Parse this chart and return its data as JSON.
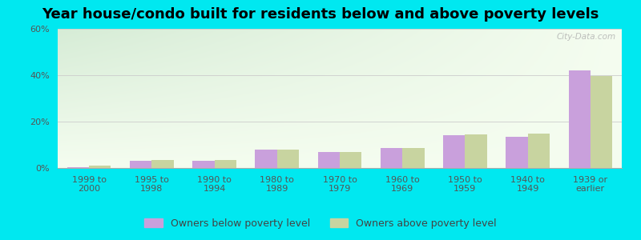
{
  "title": "Year house/condo built for residents below and above poverty levels",
  "categories": [
    "1999 to\n2000",
    "1995 to\n1998",
    "1990 to\n1994",
    "1980 to\n1989",
    "1970 to\n1979",
    "1960 to\n1969",
    "1950 to\n1959",
    "1940 to\n1949",
    "1939 or\nearlier"
  ],
  "below_poverty": [
    0.5,
    3.0,
    3.0,
    8.0,
    7.0,
    8.5,
    14.0,
    13.5,
    42.0
  ],
  "above_poverty": [
    1.0,
    3.5,
    3.5,
    8.0,
    7.0,
    8.5,
    14.5,
    15.0,
    39.5
  ],
  "below_color": "#c9a0dc",
  "above_color": "#c8d4a0",
  "bg_top_left": "#d6ecd6",
  "bg_bottom_right": "#f5fdf0",
  "outer_bg": "#00e8f0",
  "ylim": [
    0,
    60
  ],
  "yticks": [
    0,
    20,
    40,
    60
  ],
  "ytick_labels": [
    "0%",
    "20%",
    "40%",
    "60%"
  ],
  "grid_color": "#cccccc",
  "legend_below": "Owners below poverty level",
  "legend_above": "Owners above poverty level",
  "title_fontsize": 13,
  "tick_fontsize": 8,
  "legend_fontsize": 9,
  "bar_width": 0.35,
  "watermark": "City-Data.com"
}
